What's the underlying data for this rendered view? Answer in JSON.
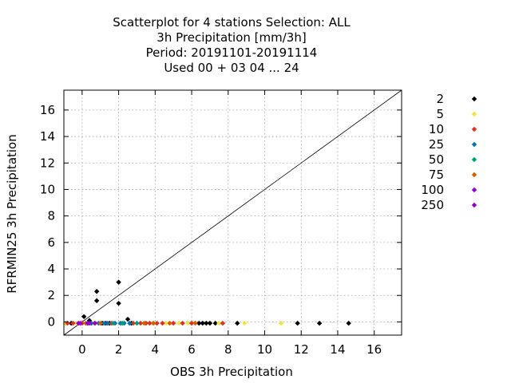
{
  "chart_data": {
    "type": "scatter",
    "title_lines": [
      "Scatterplot for    4 stations Selection: ALL",
      "3h Precipitation [mm/3h]",
      "Period: 20191101-20191114",
      "Used  00 + 03 04 ... 24"
    ],
    "xlabel": "OBS 3h Precipitation",
    "ylabel": "RFRMIN25 3h Precipitation",
    "xlim": [
      -1,
      17.5
    ],
    "ylim": [
      -1,
      17.5
    ],
    "xticks": [
      0,
      2,
      4,
      6,
      8,
      10,
      12,
      14,
      16
    ],
    "yticks": [
      0,
      2,
      4,
      6,
      8,
      10,
      12,
      14,
      16
    ],
    "grid": true,
    "legend_position": "right",
    "diagonal": true,
    "series": [
      {
        "name": "2",
        "color": "#000000",
        "points": [
          [
            -0.9,
            -0.1
          ],
          [
            -0.6,
            -0.1
          ],
          [
            0.1,
            0.4
          ],
          [
            0.3,
            -0.1
          ],
          [
            0.4,
            0.1
          ],
          [
            0.5,
            -0.1
          ],
          [
            0.8,
            2.3
          ],
          [
            0.8,
            1.6
          ],
          [
            1.1,
            -0.1
          ],
          [
            1.3,
            -0.1
          ],
          [
            1.5,
            -0.1
          ],
          [
            2.0,
            3.0
          ],
          [
            2.0,
            1.4
          ],
          [
            2.5,
            0.2
          ],
          [
            2.7,
            -0.1
          ],
          [
            6.4,
            -0.1
          ],
          [
            6.6,
            -0.1
          ],
          [
            6.8,
            -0.1
          ],
          [
            7.0,
            -0.1
          ],
          [
            7.3,
            -0.1
          ],
          [
            8.5,
            -0.1
          ],
          [
            11.8,
            -0.1
          ],
          [
            13.0,
            -0.1
          ],
          [
            14.6,
            -0.1
          ]
        ]
      },
      {
        "name": "5",
        "color": "#f0e442",
        "points": [
          [
            -0.9,
            -0.1
          ],
          [
            -0.3,
            -0.1
          ],
          [
            0.6,
            -0.1
          ],
          [
            2.2,
            -0.1
          ],
          [
            4.6,
            -0.1
          ],
          [
            5.3,
            -0.1
          ],
          [
            5.8,
            -0.1
          ],
          [
            7.5,
            -0.1
          ],
          [
            8.9,
            -0.1
          ],
          [
            10.9,
            -0.1
          ]
        ]
      },
      {
        "name": "10",
        "color": "#e03020",
        "points": [
          [
            -0.8,
            -0.1
          ],
          [
            -0.5,
            -0.1
          ],
          [
            0.0,
            -0.1
          ],
          [
            0.7,
            -0.1
          ],
          [
            1.6,
            -0.1
          ],
          [
            2.8,
            -0.1
          ],
          [
            3.2,
            -0.1
          ],
          [
            3.5,
            -0.1
          ],
          [
            3.7,
            -0.1
          ],
          [
            4.1,
            -0.1
          ],
          [
            4.4,
            -0.1
          ],
          [
            5.0,
            -0.1
          ],
          [
            5.5,
            -0.1
          ],
          [
            6.0,
            -0.1
          ],
          [
            7.7,
            -0.1
          ]
        ]
      },
      {
        "name": "25",
        "color": "#0072b2",
        "points": [
          [
            0.5,
            -0.1
          ],
          [
            0.9,
            -0.1
          ],
          [
            1.2,
            -0.1
          ],
          [
            1.4,
            -0.1
          ],
          [
            1.8,
            -0.1
          ],
          [
            2.1,
            -0.1
          ],
          [
            2.3,
            -0.1
          ],
          [
            2.6,
            -0.1
          ]
        ]
      },
      {
        "name": "50",
        "color": "#009e73",
        "points": [
          [
            1.7,
            -0.1
          ],
          [
            2.2,
            -0.1
          ],
          [
            3.0,
            -0.1
          ]
        ]
      },
      {
        "name": "75",
        "color": "#d55e00",
        "points": [
          [
            0.2,
            -0.1
          ],
          [
            1.0,
            -0.1
          ],
          [
            3.4,
            -0.1
          ],
          [
            3.9,
            -0.1
          ],
          [
            4.8,
            -0.1
          ],
          [
            6.2,
            -0.1
          ]
        ]
      },
      {
        "name": "100",
        "color": "#9400d3",
        "points": [
          [
            -0.2,
            -0.1
          ],
          [
            0.3,
            -0.1
          ],
          [
            0.7,
            -0.1
          ]
        ]
      },
      {
        "name": "250",
        "color": "#9400d3",
        "points": [
          [
            -0.1,
            -0.1
          ],
          [
            0.4,
            -0.1
          ]
        ]
      }
    ]
  }
}
